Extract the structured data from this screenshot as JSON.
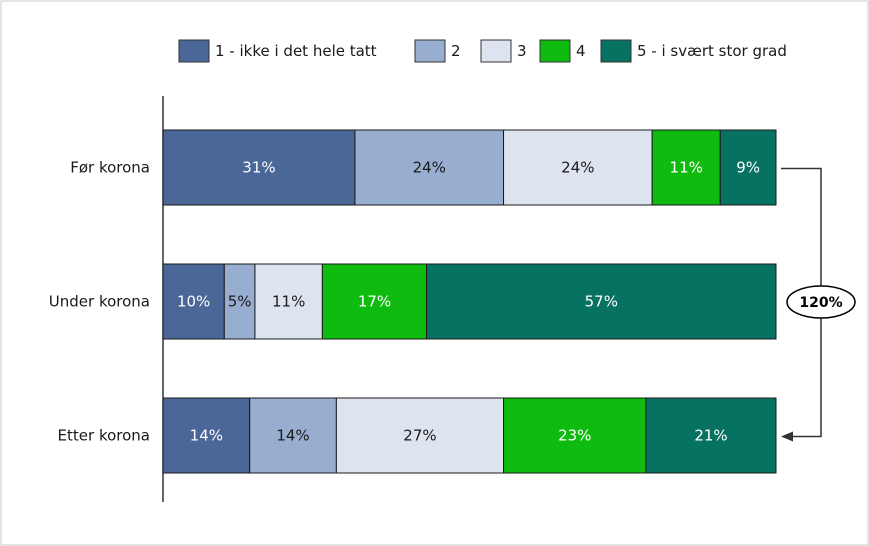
{
  "chart_data": {
    "type": "bar",
    "orientation": "horizontal",
    "stacked": true,
    "normalized_percent": true,
    "categories": [
      "Før korona",
      "Under korona",
      "Etter korona"
    ],
    "series": [
      {
        "name": "1 - ikke i det hele tatt",
        "color": "#4a6797",
        "label_color": "#ffffff",
        "values": [
          31,
          10,
          14
        ],
        "labels": [
          "31%",
          "10%",
          "14%"
        ]
      },
      {
        "name": "2",
        "color": "#98aed0",
        "label_color": "#1a1a1a",
        "values": [
          24,
          5,
          14
        ],
        "labels": [
          "24%",
          "5%",
          "14%"
        ]
      },
      {
        "name": "3",
        "color": "#dde4ef",
        "label_color": "#1a1a1a",
        "values": [
          24,
          11,
          27
        ],
        "labels": [
          "24%",
          "11%",
          "27%"
        ]
      },
      {
        "name": "4",
        "color": "#0fbb0f",
        "label_color": "#ffffff",
        "values": [
          11,
          17,
          23
        ],
        "labels": [
          "11%",
          "17%",
          "23%"
        ]
      },
      {
        "name": "5 - i svært stor grad",
        "color": "#087262",
        "label_color": "#ffffff",
        "values": [
          9,
          57,
          21
        ],
        "labels": [
          "9%",
          "57%",
          "21%"
        ]
      }
    ],
    "annotation": {
      "text": "120%",
      "from_category": "Før korona",
      "to_category": "Etter korona"
    },
    "legend_position": "top",
    "grid": false
  }
}
